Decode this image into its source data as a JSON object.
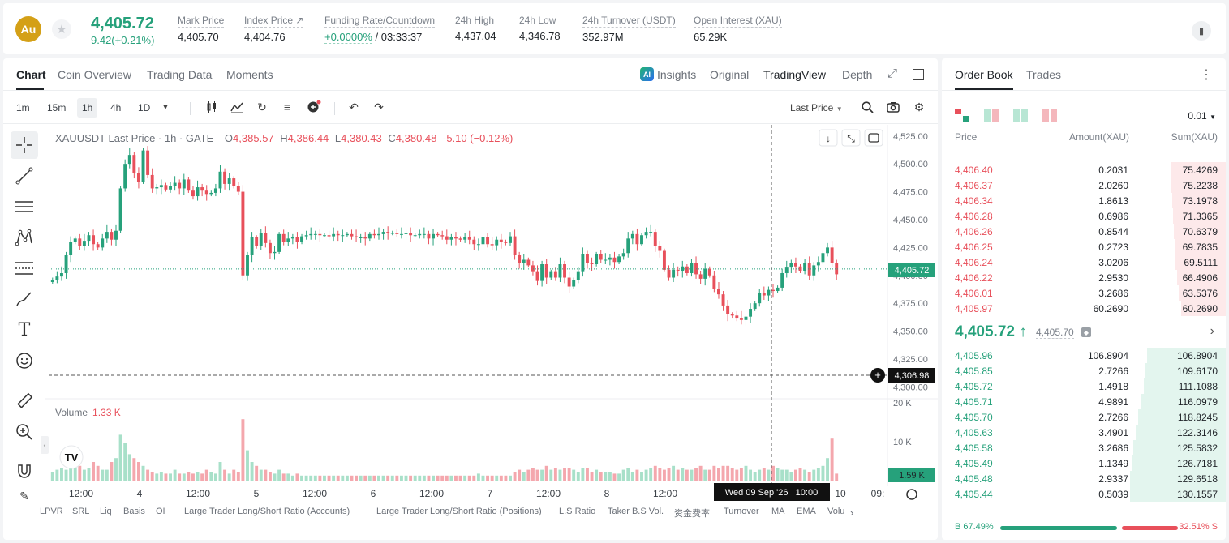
{
  "header": {
    "logo_text": "Au",
    "price": "4,405.72",
    "change": "9.42(+0.21%)",
    "stats": [
      {
        "label": "Mark Price",
        "value": "4,405.70"
      },
      {
        "label": "Index Price ↗",
        "value": "4,404.76"
      },
      {
        "label": "Funding Rate/Countdown",
        "value_green": "+0.0000%",
        "value": " / 03:33:37"
      },
      {
        "label": "24h High",
        "value": "4,437.04"
      },
      {
        "label": "24h Low",
        "value": "4,346.78"
      },
      {
        "label": "24h Turnover (USDT)",
        "value": "352.97M"
      },
      {
        "label": "Open Interest (XAU)",
        "value": "65.29K"
      }
    ]
  },
  "chart_tabs": [
    "Chart",
    "Coin Overview",
    "Trading Data",
    "Moments"
  ],
  "view_tabs": {
    "insights": "Insights",
    "original": "Original",
    "tradingview": "TradingView",
    "depth": "Depth",
    "ai_badge": "AI"
  },
  "timeframes": [
    "1m",
    "15m",
    "1h",
    "4h",
    "1D"
  ],
  "price_source": "Last Price",
  "legend": {
    "symbol": "XAUUSDT Last Price · 1h · GATE",
    "o": "O",
    "o_val": "4,385.57",
    "h": "H",
    "h_val": "4,386.44",
    "l": "L",
    "l_val": "4,380.43",
    "c": "C",
    "c_val": "4,380.48",
    "chg": "-5.10 (−0.12%)"
  },
  "volume": {
    "label": "Volume",
    "value": "1.33 K"
  },
  "chart_data": {
    "type": "candlestick",
    "price_axis_ticks": [
      "4,525.00",
      "4,500.00",
      "4,475.00",
      "4,450.00",
      "4,425.00",
      "4,400.00",
      "4,375.00",
      "4,350.00",
      "4,325.00",
      "4,300.00"
    ],
    "ylim": [
      4293,
      4535
    ],
    "volume_axis_ticks": [
      "20 K",
      "10 K"
    ],
    "x_ticks": [
      "12:00",
      "4",
      "12:00",
      "5",
      "12:00",
      "6",
      "12:00",
      "7",
      "12:00",
      "8",
      "12:00",
      "10",
      "09:"
    ],
    "last_price_label": "4,405.72",
    "crosshair_price_label": "4,306.98",
    "crosshair_time_label": "Wed 09 Sep '26   10:00",
    "volume_last_label": "1.59 K",
    "colors": {
      "up": "#26a17b",
      "down": "#e8505b",
      "vol_up": "#a8e0c9",
      "vol_down": "#f4a7ad"
    },
    "closes": [
      4396,
      4399,
      4402,
      4418,
      4430,
      4433,
      4426,
      4431,
      4436,
      4428,
      4425,
      4433,
      4439,
      4432,
      4440,
      4478,
      4500,
      4508,
      4492,
      4484,
      4512,
      4490,
      4478,
      4479,
      4481,
      4477,
      4480,
      4483,
      4478,
      4486,
      4476,
      4471,
      4479,
      4476,
      4473,
      4474,
      4478,
      4493,
      4482,
      4487,
      4480,
      4475,
      4400,
      4418,
      4434,
      4426,
      4438,
      4429,
      4420,
      4421,
      4437,
      4430,
      4433,
      4434,
      4430,
      4435,
      4436,
      4437,
      4437,
      4436,
      4436,
      4435,
      4437,
      4436,
      4436,
      4437,
      4435,
      4434,
      4434,
      4433,
      4437,
      4436,
      4437,
      4439,
      4438,
      4438,
      4437,
      4437,
      4438,
      4436,
      4436,
      4437,
      4437,
      4433,
      4437,
      4436,
      4435,
      4432,
      4434,
      4433,
      4432,
      4434,
      4432,
      4428,
      4428,
      4434,
      4428,
      4427,
      4432,
      4430,
      4429,
      4435,
      4418,
      4411,
      4414,
      4409,
      4403,
      4395,
      4410,
      4398,
      4403,
      4398,
      4410,
      4398,
      4390,
      4396,
      4403,
      4419,
      4411,
      4410,
      4419,
      4414,
      4414,
      4416,
      4412,
      4417,
      4420,
      4433,
      4437,
      4428,
      4436,
      4439,
      4439,
      4426,
      4422,
      4405,
      4398,
      4405,
      4404,
      4408,
      4402,
      4411,
      4401,
      4397,
      4406,
      4400,
      4388,
      4383,
      4373,
      4365,
      4364,
      4362,
      4360,
      4363,
      4370,
      4375,
      4384,
      4382,
      4387,
      4386,
      4389,
      4402,
      4407,
      4411,
      4408,
      4404,
      4411,
      4400,
      4409,
      4412,
      4420,
      4425,
      4411,
      4401
    ],
    "volumes": [
      2.5,
      3,
      3.5,
      3,
      4,
      3.5,
      4,
      3,
      3.5,
      5,
      4,
      3,
      3,
      5,
      6,
      12,
      10,
      7,
      6,
      5,
      4,
      3,
      2.5,
      2,
      2.5,
      2,
      2,
      3,
      2,
      2,
      2.5,
      2,
      2.5,
      2,
      3,
      2.5,
      2,
      5,
      3,
      2,
      3,
      2.5,
      16,
      8,
      5,
      4,
      3,
      3,
      2.5,
      2,
      3,
      2,
      2,
      1.5,
      2,
      1.5,
      1.5,
      1.5,
      1.5,
      1.5,
      1.5,
      1.5,
      1.5,
      1.5,
      1.5,
      1.5,
      1.5,
      1.5,
      1.5,
      1.5,
      1.5,
      1.5,
      1.5,
      1.5,
      1.5,
      1.5,
      1.5,
      1.5,
      1.5,
      1.5,
      1.5,
      1.5,
      1.5,
      1.5,
      1.5,
      1.5,
      1.5,
      1.5,
      1.5,
      1.5,
      1.5,
      1.5,
      1.5,
      1.5,
      2,
      1.5,
      1.5,
      1.5,
      1.5,
      1.5,
      1.5,
      1.5,
      2.5,
      3,
      2.5,
      3,
      3.5,
      3,
      3,
      4,
      3,
      3.5,
      3,
      3.5,
      3.5,
      3,
      2.5,
      3.5,
      3.5,
      2.5,
      3,
      2.5,
      2.5,
      2.5,
      2,
      2,
      3,
      3.5,
      2.5,
      3,
      2.5,
      3,
      3.5,
      4,
      3.5,
      3,
      3.5,
      4,
      3,
      3.5,
      3,
      3,
      3.5,
      4,
      3,
      3,
      4,
      3.5,
      4,
      4,
      3.5,
      3,
      3.5,
      4,
      3,
      2.5,
      3,
      3.5,
      3,
      4,
      3.5,
      3,
      3,
      2.5,
      3,
      3.5,
      3,
      2.5,
      3,
      3.5,
      4,
      6,
      11,
      2
    ]
  },
  "indicators": [
    "LPVR",
    "SRL",
    "Liq",
    "Basis",
    "OI",
    "Large Trader Long/Short Ratio (Accounts)",
    "Large Trader Long/Short Ratio (Positions)",
    "L.S Ratio",
    "Taker B.S Vol.",
    "资金费率",
    "Turnover",
    "MA",
    "EMA",
    "Volu"
  ],
  "orderbook": {
    "tabs": [
      "Order Book",
      "Trades"
    ],
    "tick": "0.01",
    "headers": {
      "price": "Price",
      "amount": "Amount(XAU)",
      "sum": "Sum(XAU)"
    },
    "asks": [
      {
        "price": "4,406.40",
        "amount": "0.2031",
        "sum": "75.4269"
      },
      {
        "price": "4,406.37",
        "amount": "2.0260",
        "sum": "75.2238"
      },
      {
        "price": "4,406.34",
        "amount": "1.8613",
        "sum": "73.1978"
      },
      {
        "price": "4,406.28",
        "amount": "0.6986",
        "sum": "71.3365"
      },
      {
        "price": "4,406.26",
        "amount": "0.8544",
        "sum": "70.6379"
      },
      {
        "price": "4,406.25",
        "amount": "0.2723",
        "sum": "69.7835"
      },
      {
        "price": "4,406.24",
        "amount": "3.0206",
        "sum": "69.5111"
      },
      {
        "price": "4,406.22",
        "amount": "2.9530",
        "sum": "66.4906"
      },
      {
        "price": "4,406.01",
        "amount": "3.2686",
        "sum": "63.5376"
      },
      {
        "price": "4,405.97",
        "amount": "60.2690",
        "sum": "60.2690"
      }
    ],
    "mid_price": "4,405.72 ↑",
    "mid_mark": "4,405.70",
    "bids": [
      {
        "price": "4,405.96",
        "amount": "106.8904",
        "sum": "106.8904"
      },
      {
        "price": "4,405.85",
        "amount": "2.7266",
        "sum": "109.6170"
      },
      {
        "price": "4,405.72",
        "amount": "1.4918",
        "sum": "111.1088"
      },
      {
        "price": "4,405.71",
        "amount": "4.9891",
        "sum": "116.0979"
      },
      {
        "price": "4,405.70",
        "amount": "2.7266",
        "sum": "118.8245"
      },
      {
        "price": "4,405.63",
        "amount": "3.4901",
        "sum": "122.3146"
      },
      {
        "price": "4,405.58",
        "amount": "3.2686",
        "sum": "125.5832"
      },
      {
        "price": "4,405.49",
        "amount": "1.1349",
        "sum": "126.7181"
      },
      {
        "price": "4,405.48",
        "amount": "2.9337",
        "sum": "129.6518"
      },
      {
        "price": "4,405.44",
        "amount": "0.5039",
        "sum": "130.1557"
      }
    ],
    "buy_ratio": "B 67.49%",
    "sell_ratio": "32.51% S",
    "buy_fraction": 0.6749
  }
}
